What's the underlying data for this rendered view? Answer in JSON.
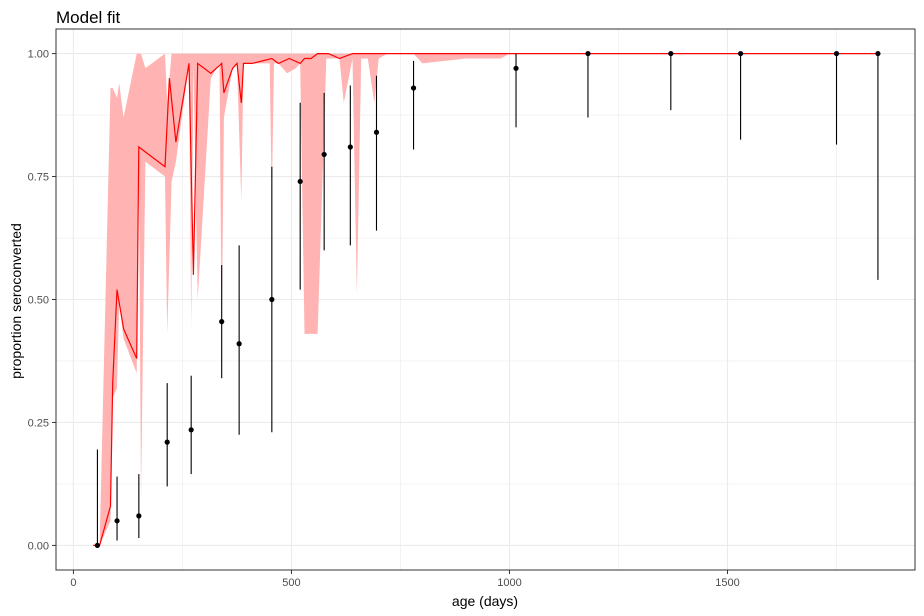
{
  "chart_data": {
    "type": "scatter",
    "title": "Model fit",
    "xlabel": "age (days)",
    "ylabel": "proportion seroconverted",
    "xlim": [
      -40,
      1930
    ],
    "ylim": [
      -0.05,
      1.05
    ],
    "x_ticks": [
      0,
      500,
      1000,
      1500
    ],
    "x_tick_labels": [
      "0",
      "500",
      "1000",
      "1500"
    ],
    "x_minor_ticks": [
      250,
      750,
      1250,
      1750
    ],
    "y_ticks": [
      0,
      0.25,
      0.5,
      0.75,
      1
    ],
    "y_tick_labels": [
      "0.00",
      "0.25",
      "0.50",
      "0.75",
      "1.00"
    ],
    "y_minor_ticks": [
      0.125,
      0.375,
      0.625,
      0.875
    ],
    "grid": true,
    "colors": {
      "fit_line": "#ff0000",
      "ribbon": "#ffb3b3",
      "points": "#000000",
      "grid": "#ebebeb",
      "panel_border": "#333333"
    },
    "points": [
      {
        "x": 55,
        "y": 0.0,
        "lo": 0.0,
        "hi": 0.195
      },
      {
        "x": 100,
        "y": 0.05,
        "lo": 0.01,
        "hi": 0.14
      },
      {
        "x": 150,
        "y": 0.06,
        "lo": 0.015,
        "hi": 0.145
      },
      {
        "x": 215,
        "y": 0.21,
        "lo": 0.12,
        "hi": 0.33
      },
      {
        "x": 270,
        "y": 0.235,
        "lo": 0.145,
        "hi": 0.345
      },
      {
        "x": 340,
        "y": 0.455,
        "lo": 0.34,
        "hi": 0.57
      },
      {
        "x": 380,
        "y": 0.41,
        "lo": 0.225,
        "hi": 0.61
      },
      {
        "x": 455,
        "y": 0.5,
        "lo": 0.23,
        "hi": 0.77
      },
      {
        "x": 520,
        "y": 0.74,
        "lo": 0.52,
        "hi": 0.9
      },
      {
        "x": 575,
        "y": 0.795,
        "lo": 0.6,
        "hi": 0.92
      },
      {
        "x": 635,
        "y": 0.81,
        "lo": 0.61,
        "hi": 0.935
      },
      {
        "x": 695,
        "y": 0.84,
        "lo": 0.64,
        "hi": 0.955
      },
      {
        "x": 780,
        "y": 0.93,
        "lo": 0.805,
        "hi": 0.985
      },
      {
        "x": 1015,
        "y": 0.97,
        "lo": 0.85,
        "hi": 1.0
      },
      {
        "x": 1180,
        "y": 1.0,
        "lo": 0.87,
        "hi": 1.0
      },
      {
        "x": 1370,
        "y": 1.0,
        "lo": 0.885,
        "hi": 1.0
      },
      {
        "x": 1530,
        "y": 1.0,
        "lo": 0.825,
        "hi": 1.0
      },
      {
        "x": 1750,
        "y": 1.0,
        "lo": 0.815,
        "hi": 1.0
      },
      {
        "x": 1845,
        "y": 1.0,
        "lo": 0.54,
        "hi": 1.0
      }
    ],
    "fit": {
      "x": [
        45,
        60,
        85,
        90,
        100,
        115,
        145,
        150,
        165,
        210,
        220,
        235,
        265,
        275,
        285,
        315,
        340,
        345,
        365,
        375,
        385,
        390,
        410,
        455,
        470,
        495,
        520,
        530,
        545,
        560,
        585,
        610,
        640,
        660,
        690,
        700,
        720,
        780,
        1845
      ],
      "y": [
        0.0,
        0.0,
        0.08,
        0.33,
        0.52,
        0.44,
        0.38,
        0.81,
        0.8,
        0.77,
        0.95,
        0.82,
        0.98,
        0.55,
        0.98,
        0.96,
        0.98,
        0.92,
        0.97,
        0.98,
        0.9,
        0.98,
        0.98,
        0.99,
        0.98,
        0.99,
        0.98,
        0.99,
        0.99,
        1.0,
        1.0,
        0.99,
        1.0,
        1.0,
        1.0,
        1.0,
        1.0,
        1.0,
        1.0
      ]
    },
    "ribbon": {
      "x": [
        45,
        60,
        85,
        90,
        100,
        105,
        115,
        145,
        150,
        155,
        165,
        210,
        215,
        225,
        235,
        265,
        270,
        275,
        285,
        315,
        335,
        340,
        345,
        365,
        375,
        385,
        390,
        420,
        450,
        455,
        460,
        470,
        490,
        510,
        520,
        530,
        560,
        580,
        610,
        620,
        640,
        650,
        660,
        675,
        690,
        700,
        720,
        760,
        780,
        800,
        900,
        980,
        1000,
        1845
      ],
      "lo": [
        0.0,
        0.0,
        0.05,
        0.3,
        0.32,
        0.5,
        0.42,
        0.35,
        0.8,
        0.1,
        0.78,
        0.75,
        0.43,
        0.74,
        0.78,
        0.98,
        0.44,
        0.98,
        0.5,
        0.95,
        0.98,
        0.42,
        0.87,
        0.97,
        0.98,
        0.7,
        0.98,
        0.98,
        0.98,
        0.7,
        0.98,
        0.98,
        0.96,
        0.97,
        0.98,
        0.43,
        0.43,
        0.99,
        0.99,
        0.9,
        0.99,
        0.51,
        0.99,
        0.99,
        0.9,
        0.99,
        1.0,
        1.0,
        1.0,
        0.98,
        0.99,
        0.99,
        1.0,
        1.0
      ],
      "hi": [
        0.0,
        0.0,
        0.93,
        0.93,
        0.91,
        0.94,
        0.87,
        1.0,
        1.0,
        1.0,
        0.97,
        1.0,
        0.9,
        1.0,
        1.0,
        1.0,
        1.0,
        1.0,
        1.0,
        1.0,
        1.0,
        1.0,
        1.0,
        1.0,
        1.0,
        1.0,
        1.0,
        1.0,
        1.0,
        1.0,
        1.0,
        1.0,
        1.0,
        1.0,
        1.0,
        1.0,
        1.0,
        1.0,
        1.0,
        1.0,
        1.0,
        1.0,
        1.0,
        1.0,
        1.0,
        1.0,
        1.0,
        1.0,
        1.0,
        1.0,
        1.0,
        1.0,
        1.0,
        1.0
      ]
    }
  }
}
